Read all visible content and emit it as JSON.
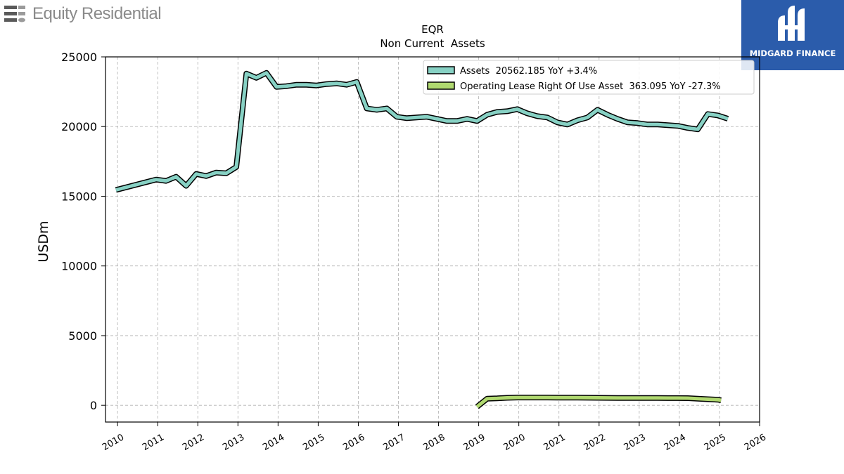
{
  "header": {
    "left_logo_text": "Equity Residential",
    "right_logo_text": "MIDGARD FINANCE"
  },
  "colors": {
    "assets": "#87d1c4",
    "lease": "#b0d970",
    "outline": "#000000",
    "logo_right_bg": "#2b5cab",
    "left_logo_gray": "#8a8a8a"
  },
  "chart_data": {
    "type": "line",
    "title": "EQR",
    "subtitle": "Non Current  Assets",
    "ylabel": "USDm",
    "xlabel": "",
    "xlim": [
      2009.7,
      2026.0
    ],
    "ylim": [
      -1200,
      25000
    ],
    "yticks": [
      0,
      5000,
      10000,
      15000,
      20000,
      25000
    ],
    "xticks": [
      "2010",
      "2011",
      "2012",
      "2013",
      "2014",
      "2015",
      "2016",
      "2017",
      "2018",
      "2019",
      "2020",
      "2021",
      "2022",
      "2023",
      "2024",
      "2025",
      "2026"
    ],
    "grid": true,
    "legend_position": "top-right",
    "series": [
      {
        "name": "Assets  20562.185 YoY +3.4%",
        "color_key": "assets",
        "x": [
          2009.96,
          2010.96,
          2011.21,
          2011.46,
          2011.71,
          2011.96,
          2012.21,
          2012.46,
          2012.71,
          2012.96,
          2013.21,
          2013.46,
          2013.71,
          2013.96,
          2014.21,
          2014.46,
          2014.71,
          2014.96,
          2015.21,
          2015.46,
          2015.71,
          2015.96,
          2016.21,
          2016.46,
          2016.71,
          2016.96,
          2017.21,
          2017.46,
          2017.71,
          2017.96,
          2018.21,
          2018.46,
          2018.71,
          2018.96,
          2019.21,
          2019.46,
          2019.71,
          2019.96,
          2020.21,
          2020.46,
          2020.71,
          2020.96,
          2021.21,
          2021.46,
          2021.71,
          2021.96,
          2022.21,
          2022.46,
          2022.71,
          2022.96,
          2023.21,
          2023.46,
          2023.71,
          2023.96,
          2024.21,
          2024.46,
          2024.71,
          2024.96,
          2025.21
        ],
        "y": [
          15450,
          16200,
          16100,
          16400,
          15750,
          16600,
          16450,
          16700,
          16650,
          17100,
          23800,
          23500,
          23850,
          22850,
          22900,
          23000,
          23000,
          22950,
          23050,
          23100,
          23000,
          23200,
          21300,
          21200,
          21300,
          20700,
          20600,
          20650,
          20700,
          20550,
          20400,
          20400,
          20550,
          20400,
          20850,
          21050,
          21100,
          21250,
          20950,
          20750,
          20650,
          20300,
          20150,
          20450,
          20650,
          21200,
          20850,
          20550,
          20300,
          20250,
          20150,
          20150,
          20100,
          20050,
          19900,
          19800,
          20900,
          20800,
          20560
        ]
      },
      {
        "name": "Operating Lease Right Of Use Asset  363.095 YoY -27.3%",
        "color_key": "lease",
        "x": [
          2018.96,
          2019.21,
          2019.46,
          2019.71,
          2019.96,
          2020.21,
          2020.46,
          2020.71,
          2020.96,
          2021.21,
          2021.46,
          2021.71,
          2021.96,
          2022.21,
          2022.46,
          2022.71,
          2022.96,
          2023.21,
          2023.46,
          2023.71,
          2023.96,
          2024.21,
          2024.46,
          2024.71,
          2024.96,
          2025.04
        ],
        "y": [
          -100,
          480,
          500,
          540,
          560,
          560,
          560,
          560,
          555,
          550,
          550,
          545,
          540,
          535,
          530,
          530,
          525,
          525,
          525,
          520,
          520,
          515,
          480,
          440,
          400,
          363
        ]
      }
    ]
  }
}
